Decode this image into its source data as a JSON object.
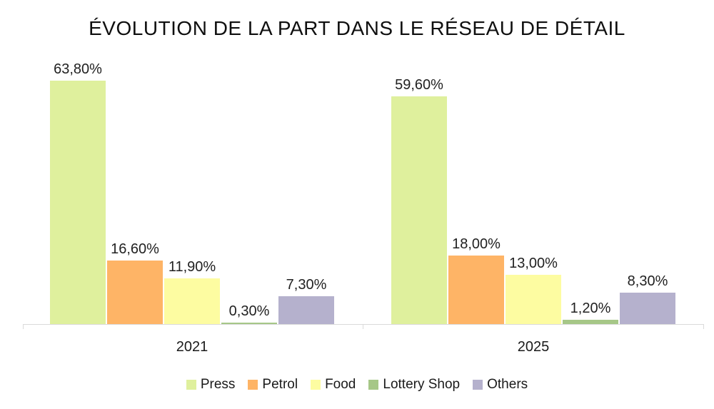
{
  "title": "ÉVOLUTION DE LA PART DANS LE RÉSEAU DE DÉTAIL",
  "colors": {
    "axis": "#dadada",
    "value_label_text": "#212121",
    "title_text": "#0f0f0f"
  },
  "chart_data": {
    "type": "bar",
    "title": "ÉVOLUTION DE LA PART DANS LE RÉSEAU DE DÉTAIL",
    "categories": [
      "2021",
      "2025"
    ],
    "series": [
      {
        "name": "Press",
        "color": "#dff09d",
        "values": [
          63.8,
          59.6
        ],
        "labels": [
          "63,80%",
          "59,60%"
        ]
      },
      {
        "name": "Petrol",
        "color": "#feb466",
        "values": [
          16.6,
          18.0
        ],
        "labels": [
          "16,60%",
          "18,00%"
        ]
      },
      {
        "name": "Food",
        "color": "#fdfca1",
        "values": [
          11.9,
          13.0
        ],
        "labels": [
          "11,90%",
          "13,00%"
        ]
      },
      {
        "name": "Lottery Shop",
        "color": "#a6c787",
        "values": [
          0.3,
          1.2
        ],
        "labels": [
          "0,30%",
          "1,20%"
        ]
      },
      {
        "name": "Others",
        "color": "#b5b1cd",
        "values": [
          7.3,
          8.3
        ],
        "labels": [
          "7,30%",
          "8,30%"
        ]
      }
    ],
    "xlabel": "",
    "ylabel": "",
    "ylim": [
      0,
      63.8
    ],
    "grid": false,
    "value_labels_shown": true,
    "value_label_format": "comma-decimal-2dp-percent",
    "legend_position": "bottom"
  }
}
